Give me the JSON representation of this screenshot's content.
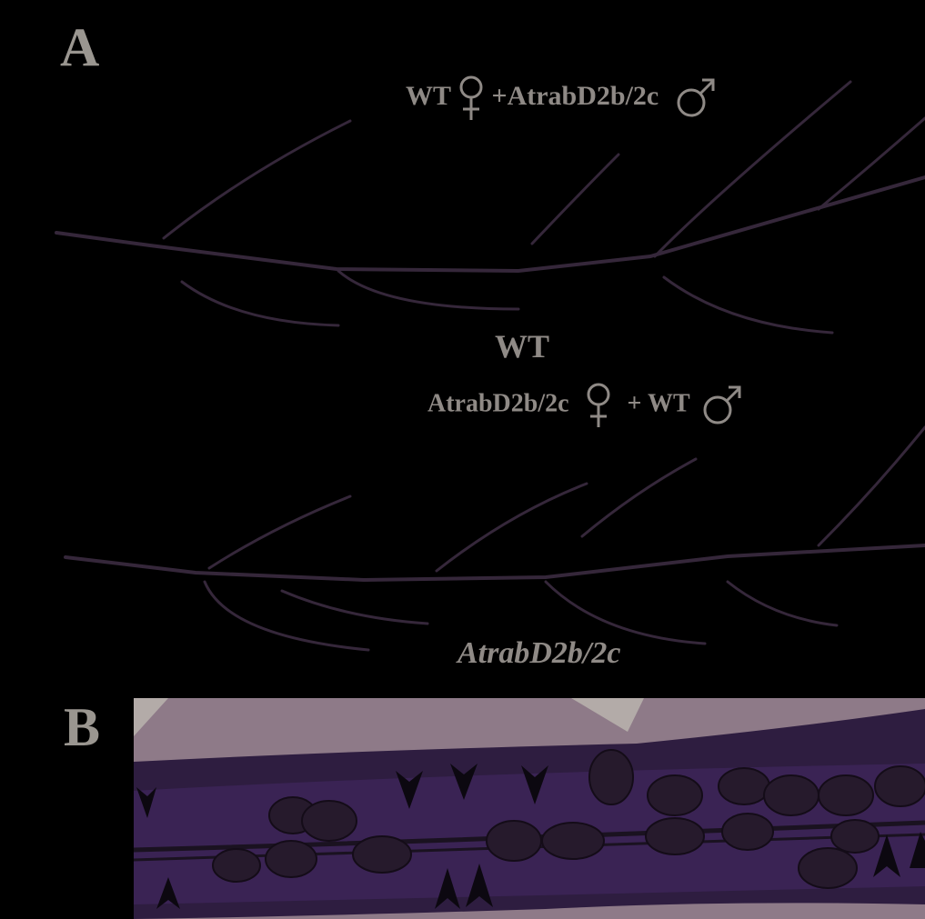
{
  "panels": {
    "a": {
      "letter": "A",
      "cross_top": {
        "prefix": "WT",
        "middle": "+AtrabD2b/2c",
        "female_symbol": "female-symbol-icon",
        "male_symbol": "male-symbol-icon"
      },
      "label_wt": "WT",
      "cross_bottom": {
        "prefix": "AtrabD2b/2c",
        "middle": "+ WT",
        "female_symbol": "female-symbol-icon",
        "male_symbol": "male-symbol-icon"
      },
      "label_mutant": "AtrabD2b/2c"
    },
    "b": {
      "letter": "B",
      "arrowhead_icon": "arrowhead-icon",
      "seed_icon": "seed-icon"
    }
  },
  "colors": {
    "background": "#000000",
    "text": "#8f8a86",
    "stem": "#3a2a3e",
    "silique_tissue": "#3c2458",
    "light_background": "#8e7a88",
    "seed": "#261a2c"
  }
}
